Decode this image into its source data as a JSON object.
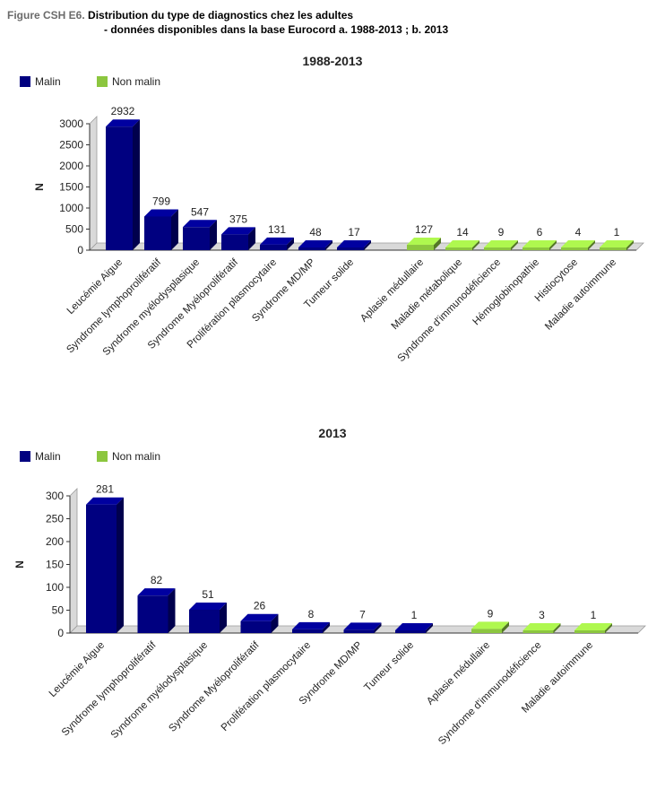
{
  "figure": {
    "label": "Figure CSH E6.",
    "title_line1": "Distribution du type de diagnostics chez les adultes",
    "title_line2": "- données disponibles dans la base Eurocord a. 1988-2013 ; b. 2013"
  },
  "colors": {
    "malin": "#000080",
    "non_malin": "#8cc63f"
  },
  "chart_data": [
    {
      "type": "bar",
      "title": "1988-2013",
      "ylabel": "N",
      "xlabel": "",
      "ylim": [
        0,
        3000
      ],
      "yticks": [
        0,
        500,
        1000,
        1500,
        2000,
        2500,
        3000
      ],
      "legend": {
        "position": "top-left",
        "entries": [
          "Malin",
          "Non malin"
        ]
      },
      "grid": false,
      "categories": [
        "Leucémie Aigue",
        "Syndrome lymphoprolifératif",
        "Syndrome myélodysplasique",
        "Syndrome Myéloprolifératif",
        "Prolifération plasmocytaire",
        "Syndrome MD/MP",
        "Tumeur solide",
        "Aplasie médullaire",
        "Maladie métabolique",
        "Syndrome d'immunodéficience",
        "Hémoglobinopathie",
        "Histiocytose",
        "Maladie autoimmune"
      ],
      "values": [
        2932,
        799,
        547,
        375,
        131,
        48,
        17,
        127,
        14,
        9,
        6,
        4,
        1
      ],
      "groups": [
        "Malin",
        "Malin",
        "Malin",
        "Malin",
        "Malin",
        "Malin",
        "Malin",
        "Non malin",
        "Non malin",
        "Non malin",
        "Non malin",
        "Non malin",
        "Non malin"
      ]
    },
    {
      "type": "bar",
      "title": "2013",
      "ylabel": "N",
      "xlabel": "",
      "ylim": [
        0,
        300
      ],
      "yticks": [
        0,
        50,
        100,
        150,
        200,
        250,
        300
      ],
      "legend": {
        "position": "top-left",
        "entries": [
          "Malin",
          "Non malin"
        ]
      },
      "grid": false,
      "categories": [
        "Leucémie Aigue",
        "Syndrome lymphoprolifératif",
        "Syndrome myélodysplasique",
        "Syndrome Myéloprolifératif",
        "Prolifération plasmocytaire",
        "Syndrome MD/MP",
        "Tumeur solide",
        "Aplasie médullaire",
        "Syndrome d'immunodéficience",
        "Maladie autoimmune"
      ],
      "values": [
        281,
        82,
        51,
        26,
        8,
        7,
        1,
        9,
        3,
        1
      ],
      "groups": [
        "Malin",
        "Malin",
        "Malin",
        "Malin",
        "Malin",
        "Malin",
        "Malin",
        "Non malin",
        "Non malin",
        "Non malin"
      ]
    }
  ]
}
